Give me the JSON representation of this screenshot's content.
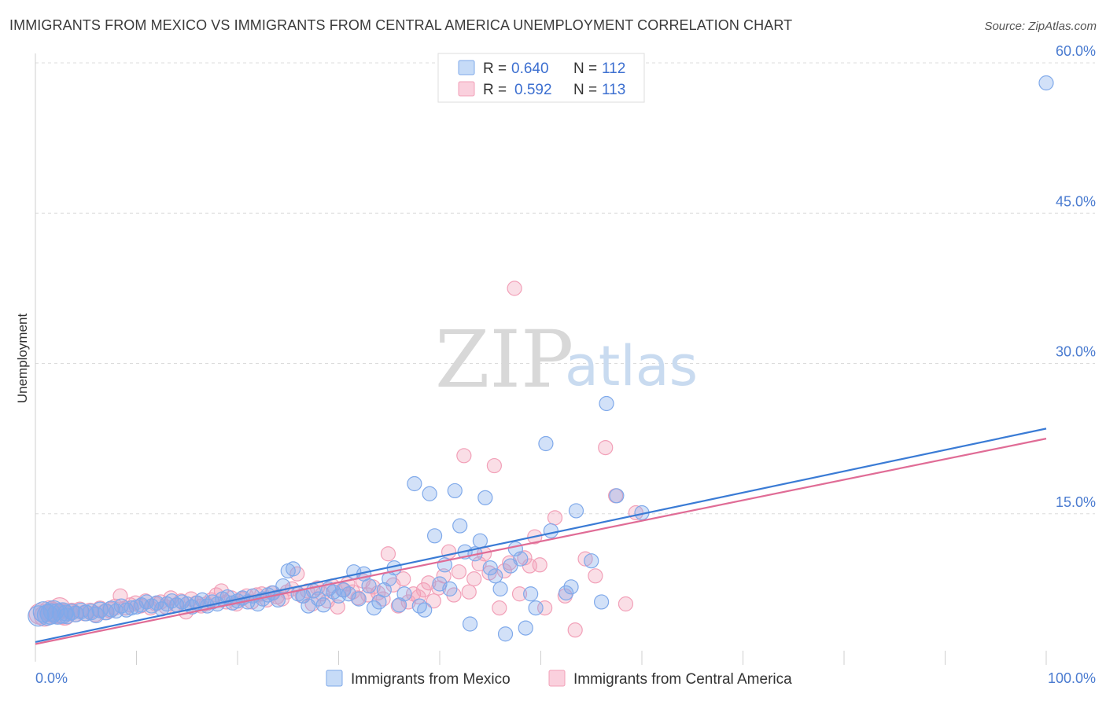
{
  "title": "IMMIGRANTS FROM MEXICO VS IMMIGRANTS FROM CENTRAL AMERICA UNEMPLOYMENT CORRELATION CHART",
  "source": "Source: ZipAtlas.com",
  "watermark": {
    "zip": "ZIP",
    "atlas": "atlas"
  },
  "legend": {
    "rows": [
      {
        "r_label": "R =",
        "r_value": "0.640",
        "n_label": "N =",
        "n_value": "112",
        "color": "#7fa9ea"
      },
      {
        "r_label": "R =",
        "r_value": "0.592",
        "n_label": "N =",
        "n_value": "113",
        "color": "#f2a0b8"
      }
    ]
  },
  "bottom_legend": [
    {
      "label": "Immigrants from Mexico",
      "color": "#7fa9ea"
    },
    {
      "label": "Immigrants from Central America",
      "color": "#f2a0b8"
    }
  ],
  "chart_data": {
    "type": "scatter",
    "title": "IMMIGRANTS FROM MEXICO VS IMMIGRANTS FROM CENTRAL AMERICA UNEMPLOYMENT CORRELATION CHART",
    "xlabel": "",
    "ylabel": "Unemployment",
    "xlim": [
      0,
      100
    ],
    "ylim": [
      0,
      60
    ],
    "x_tick_labels": [
      "0.0%",
      "100.0%"
    ],
    "y_ticks": [
      15,
      30,
      45,
      60
    ],
    "y_tick_labels": [
      "15.0%",
      "30.0%",
      "45.0%",
      "60.0%"
    ],
    "grid": true,
    "legend_position": "top-center",
    "series": [
      {
        "name": "Immigrants from Mexico",
        "color": "#7fa9ea",
        "trend": {
          "x": [
            0,
            100
          ],
          "y": [
            2.2,
            23.5
          ]
        },
        "points": [
          [
            0.3,
            4.8
          ],
          [
            0.8,
            5.2
          ],
          [
            1.2,
            4.9
          ],
          [
            1.8,
            5.3
          ],
          [
            2.2,
            5.0
          ],
          [
            2.7,
            5.1
          ],
          [
            3.1,
            4.8
          ],
          [
            3.6,
            5.2
          ],
          [
            4.0,
            5.0
          ],
          [
            4.5,
            5.3
          ],
          [
            5.0,
            5.1
          ],
          [
            5.5,
            5.2
          ],
          [
            6.0,
            4.9
          ],
          [
            6.4,
            5.4
          ],
          [
            7.0,
            5.2
          ],
          [
            7.5,
            5.5
          ],
          [
            8.0,
            5.3
          ],
          [
            8.5,
            5.8
          ],
          [
            9.0,
            5.4
          ],
          [
            9.5,
            5.6
          ],
          [
            10.0,
            5.7
          ],
          [
            10.5,
            5.9
          ],
          [
            11.0,
            6.2
          ],
          [
            11.5,
            5.8
          ],
          [
            12.0,
            6.1
          ],
          [
            12.5,
            5.5
          ],
          [
            13.0,
            6.0
          ],
          [
            13.5,
            6.3
          ],
          [
            14.0,
            5.9
          ],
          [
            14.5,
            6.2
          ],
          [
            15.0,
            6.0
          ],
          [
            15.5,
            5.7
          ],
          [
            16.0,
            6.1
          ],
          [
            16.5,
            6.4
          ],
          [
            17.0,
            5.8
          ],
          [
            17.5,
            6.2
          ],
          [
            18.0,
            6.0
          ],
          [
            18.5,
            6.5
          ],
          [
            19.0,
            6.7
          ],
          [
            19.5,
            6.1
          ],
          [
            20.0,
            6.3
          ],
          [
            20.5,
            6.6
          ],
          [
            21.0,
            6.2
          ],
          [
            21.5,
            6.8
          ],
          [
            22.0,
            6.0
          ],
          [
            22.5,
            6.5
          ],
          [
            23.0,
            6.9
          ],
          [
            23.5,
            7.1
          ],
          [
            24.0,
            6.4
          ],
          [
            24.5,
            7.8
          ],
          [
            25.0,
            9.3
          ],
          [
            25.5,
            9.5
          ],
          [
            26.0,
            7.0
          ],
          [
            26.5,
            6.8
          ],
          [
            27.0,
            5.8
          ],
          [
            27.5,
            7.3
          ],
          [
            28.0,
            6.5
          ],
          [
            28.5,
            5.9
          ],
          [
            29.0,
            7.5
          ],
          [
            29.5,
            7.2
          ],
          [
            30.0,
            6.8
          ],
          [
            30.5,
            7.4
          ],
          [
            31.0,
            7.0
          ],
          [
            31.5,
            9.2
          ],
          [
            32.0,
            6.5
          ],
          [
            32.5,
            9.0
          ],
          [
            33.0,
            7.8
          ],
          [
            33.5,
            5.6
          ],
          [
            34.0,
            6.2
          ],
          [
            34.5,
            7.4
          ],
          [
            35.0,
            8.5
          ],
          [
            35.5,
            9.6
          ],
          [
            36.0,
            5.9
          ],
          [
            36.5,
            7.0
          ],
          [
            37.5,
            18.0
          ],
          [
            38.0,
            5.8
          ],
          [
            38.5,
            5.4
          ],
          [
            39.0,
            17.0
          ],
          [
            39.5,
            12.8
          ],
          [
            40.0,
            8.0
          ],
          [
            40.5,
            9.9
          ],
          [
            41.0,
            7.5
          ],
          [
            41.5,
            17.3
          ],
          [
            42.0,
            13.8
          ],
          [
            42.5,
            11.2
          ],
          [
            43.0,
            4.0
          ],
          [
            43.5,
            11.0
          ],
          [
            44.0,
            12.3
          ],
          [
            44.5,
            16.6
          ],
          [
            45.0,
            9.6
          ],
          [
            45.5,
            8.8
          ],
          [
            46.0,
            7.5
          ],
          [
            46.5,
            3.0
          ],
          [
            47.0,
            9.8
          ],
          [
            47.5,
            11.5
          ],
          [
            48.0,
            10.5
          ],
          [
            48.5,
            3.6
          ],
          [
            49.0,
            7.0
          ],
          [
            49.5,
            5.6
          ],
          [
            50.5,
            22.0
          ],
          [
            51.0,
            13.3
          ],
          [
            52.5,
            7.1
          ],
          [
            53.0,
            7.7
          ],
          [
            53.5,
            15.3
          ],
          [
            55.0,
            10.3
          ],
          [
            56.0,
            6.2
          ],
          [
            56.5,
            26.0
          ],
          [
            57.5,
            16.8
          ],
          [
            60.0,
            15.1
          ],
          [
            100.0,
            58.0
          ],
          [
            1.5,
            5.0
          ],
          [
            3.0,
            5.1
          ]
        ]
      },
      {
        "name": "Immigrants from Central America",
        "color": "#f2a0b8",
        "trend": {
          "x": [
            0,
            100
          ],
          "y": [
            2.0,
            22.5
          ]
        },
        "points": [
          [
            0.4,
            5.0
          ],
          [
            0.9,
            4.8
          ],
          [
            1.4,
            5.3
          ],
          [
            1.9,
            5.1
          ],
          [
            2.4,
            5.6
          ],
          [
            2.9,
            4.9
          ],
          [
            3.4,
            5.2
          ],
          [
            3.9,
            5.0
          ],
          [
            4.4,
            5.4
          ],
          [
            4.9,
            5.1
          ],
          [
            5.4,
            5.3
          ],
          [
            5.9,
            5.0
          ],
          [
            6.4,
            5.5
          ],
          [
            6.9,
            5.2
          ],
          [
            7.4,
            5.4
          ],
          [
            7.9,
            5.7
          ],
          [
            8.4,
            6.8
          ],
          [
            8.9,
            5.6
          ],
          [
            9.4,
            5.9
          ],
          [
            9.9,
            6.1
          ],
          [
            10.4,
            5.8
          ],
          [
            10.9,
            6.3
          ],
          [
            11.4,
            5.6
          ],
          [
            11.9,
            6.0
          ],
          [
            12.4,
            6.2
          ],
          [
            12.9,
            5.7
          ],
          [
            13.4,
            6.6
          ],
          [
            13.9,
            5.9
          ],
          [
            14.4,
            6.3
          ],
          [
            14.9,
            5.2
          ],
          [
            15.4,
            6.5
          ],
          [
            15.9,
            6.1
          ],
          [
            16.4,
            5.8
          ],
          [
            16.9,
            6.0
          ],
          [
            17.4,
            6.4
          ],
          [
            17.9,
            6.9
          ],
          [
            18.4,
            7.3
          ],
          [
            18.9,
            6.2
          ],
          [
            19.4,
            6.6
          ],
          [
            19.9,
            6.0
          ],
          [
            20.4,
            6.5
          ],
          [
            20.9,
            6.8
          ],
          [
            21.4,
            6.2
          ],
          [
            21.9,
            6.9
          ],
          [
            22.4,
            7.0
          ],
          [
            22.9,
            6.4
          ],
          [
            23.4,
            7.1
          ],
          [
            23.9,
            6.7
          ],
          [
            24.4,
            6.5
          ],
          [
            24.9,
            7.2
          ],
          [
            25.4,
            7.5
          ],
          [
            25.9,
            9.0
          ],
          [
            26.4,
            6.8
          ],
          [
            26.9,
            7.3
          ],
          [
            27.4,
            6.0
          ],
          [
            27.9,
            7.6
          ],
          [
            28.4,
            7.0
          ],
          [
            28.9,
            6.3
          ],
          [
            29.4,
            7.8
          ],
          [
            29.9,
            5.7
          ],
          [
            30.4,
            7.4
          ],
          [
            30.9,
            8.0
          ],
          [
            31.4,
            7.2
          ],
          [
            31.9,
            6.6
          ],
          [
            32.4,
            8.3
          ],
          [
            32.9,
            6.9
          ],
          [
            33.4,
            7.7
          ],
          [
            33.9,
            7.1
          ],
          [
            34.4,
            6.5
          ],
          [
            34.9,
            11.0
          ],
          [
            35.4,
            7.9
          ],
          [
            35.9,
            5.8
          ],
          [
            36.4,
            8.5
          ],
          [
            36.9,
            6.2
          ],
          [
            37.4,
            7.0
          ],
          [
            37.9,
            6.7
          ],
          [
            38.4,
            7.4
          ],
          [
            38.9,
            8.1
          ],
          [
            39.4,
            6.3
          ],
          [
            39.9,
            7.6
          ],
          [
            40.4,
            8.8
          ],
          [
            40.9,
            11.2
          ],
          [
            41.4,
            6.9
          ],
          [
            41.9,
            9.2
          ],
          [
            42.4,
            20.8
          ],
          [
            42.9,
            7.2
          ],
          [
            43.4,
            8.5
          ],
          [
            43.9,
            10.0
          ],
          [
            44.4,
            11.0
          ],
          [
            44.9,
            9.1
          ],
          [
            45.4,
            19.8
          ],
          [
            45.9,
            5.6
          ],
          [
            46.4,
            9.3
          ],
          [
            46.9,
            10.1
          ],
          [
            47.4,
            37.5
          ],
          [
            47.9,
            7.0
          ],
          [
            48.4,
            10.6
          ],
          [
            48.9,
            9.8
          ],
          [
            49.4,
            12.7
          ],
          [
            49.9,
            9.9
          ],
          [
            50.4,
            5.6
          ],
          [
            51.4,
            14.6
          ],
          [
            52.4,
            6.8
          ],
          [
            53.4,
            3.4
          ],
          [
            54.4,
            10.5
          ],
          [
            55.4,
            8.8
          ],
          [
            56.4,
            21.6
          ],
          [
            57.4,
            16.8
          ],
          [
            58.4,
            6.0
          ],
          [
            59.4,
            15.1
          ],
          [
            1.6,
            5.2
          ],
          [
            2.6,
            5.0
          ],
          [
            3.6,
            5.3
          ]
        ]
      }
    ]
  }
}
